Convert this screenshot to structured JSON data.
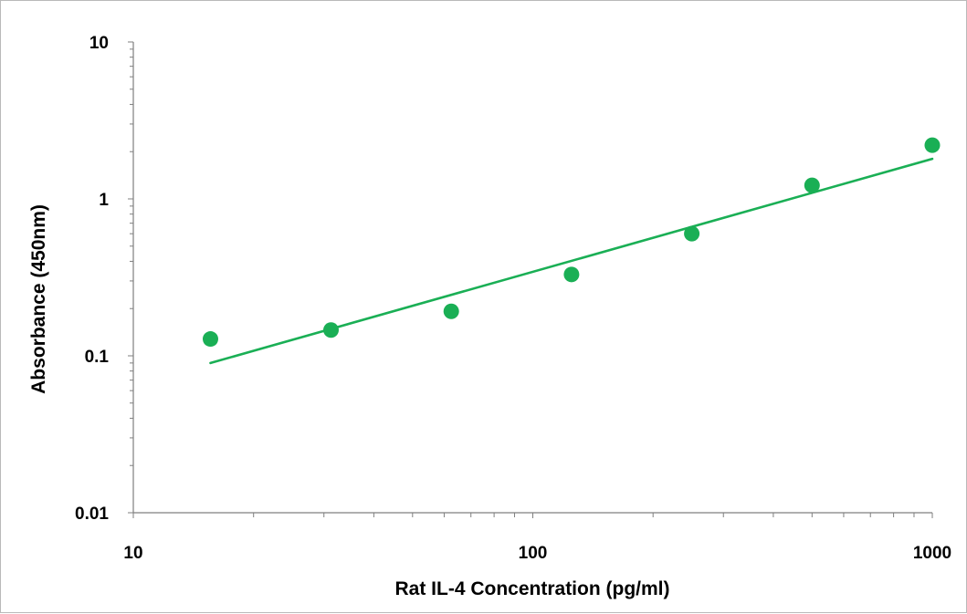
{
  "chart_data": {
    "type": "scatter",
    "title": "",
    "xlabel": "Rat IL-4 Concentration (pg/ml)",
    "ylabel": "Absorbance (450nm)",
    "x_scale": "log",
    "y_scale": "log",
    "xlim": [
      10,
      1000
    ],
    "ylim": [
      0.01,
      10
    ],
    "x_ticks": [
      "10",
      "100",
      "1000"
    ],
    "y_ticks": [
      "0.01",
      "0.1",
      "1",
      "10"
    ],
    "grid": false,
    "legend": "none",
    "series": [
      {
        "x": [
          15.6,
          31.25,
          62.5,
          125,
          250,
          500,
          1000
        ],
        "y": [
          0.128,
          0.146,
          0.192,
          0.33,
          0.6,
          1.22,
          2.2
        ],
        "color": "#1aaf55"
      }
    ],
    "trendline": {
      "x": [
        15.6,
        1000
      ],
      "y": [
        0.09,
        1.8
      ],
      "color": "#1aaf55"
    }
  }
}
